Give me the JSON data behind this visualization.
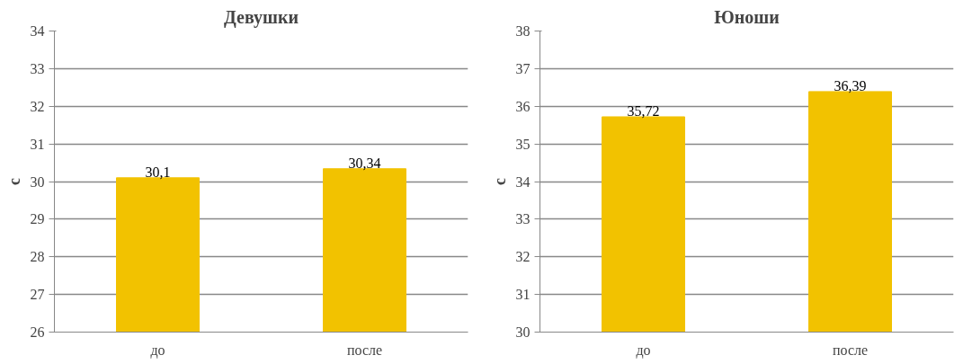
{
  "chart_data": [
    {
      "type": "bar",
      "title": "Девушки",
      "ylabel": "с",
      "categories": [
        "до",
        "после"
      ],
      "values": [
        30.1,
        30.34
      ],
      "value_labels": [
        "30,1",
        "30,34"
      ],
      "color": "#f2c200",
      "ylim": [
        26,
        34
      ],
      "yticks": [
        26,
        27,
        28,
        29,
        30,
        31,
        32,
        33,
        34
      ],
      "grid": "y"
    },
    {
      "type": "bar",
      "title": "Юноши",
      "ylabel": "с",
      "categories": [
        "до",
        "после"
      ],
      "values": [
        35.72,
        36.39
      ],
      "value_labels": [
        "35,72",
        "36,39"
      ],
      "color": "#f2c200",
      "ylim": [
        30,
        38
      ],
      "yticks": [
        30,
        31,
        32,
        33,
        34,
        35,
        36,
        37,
        38
      ],
      "grid": "y"
    }
  ]
}
